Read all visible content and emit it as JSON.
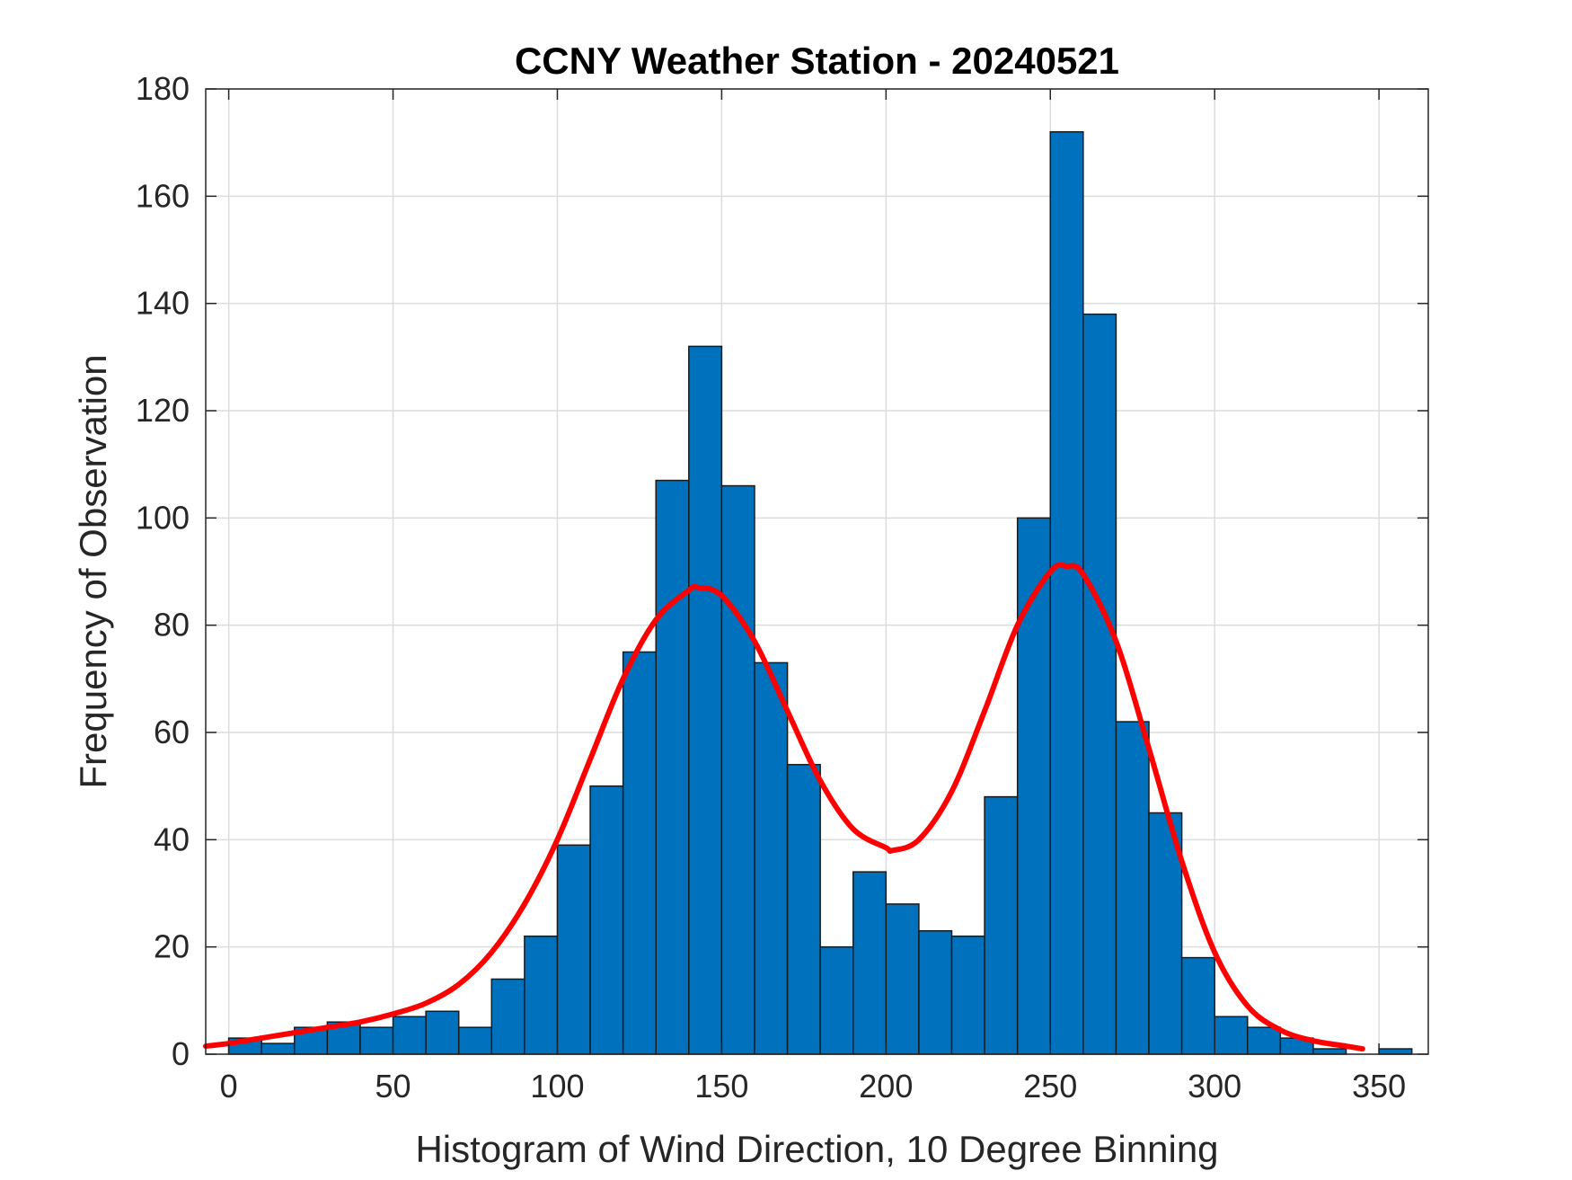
{
  "chart_data": {
    "type": "bar",
    "title": "CCNY Weather Station - 20240521",
    "xlabel": "Histogram of Wind Direction, 10 Degree Binning",
    "ylabel": "Frequency of Observation",
    "xlim": [
      -7,
      365
    ],
    "ylim": [
      0,
      180
    ],
    "xticks": [
      0,
      50,
      100,
      150,
      200,
      250,
      300,
      350
    ],
    "yticks": [
      0,
      20,
      40,
      60,
      80,
      100,
      120,
      140,
      160,
      180
    ],
    "grid": true,
    "bin_width": 10,
    "bin_edges_start": [
      0,
      10,
      20,
      30,
      40,
      50,
      60,
      70,
      80,
      90,
      100,
      110,
      120,
      130,
      140,
      150,
      160,
      170,
      180,
      190,
      200,
      210,
      220,
      230,
      240,
      250,
      260,
      270,
      280,
      290,
      300,
      310,
      320,
      330,
      340,
      350
    ],
    "values": [
      3,
      2,
      5,
      6,
      5,
      7,
      8,
      5,
      14,
      22,
      39,
      50,
      75,
      107,
      132,
      106,
      73,
      54,
      20,
      34,
      28,
      23,
      22,
      48,
      100,
      172,
      138,
      62,
      45,
      18,
      7,
      5,
      3,
      1,
      0,
      1
    ],
    "bar_color": "#0072BD",
    "fit_line": {
      "color": "#FF0000",
      "x": [
        -7,
        0,
        10,
        20,
        30,
        40,
        50,
        60,
        70,
        80,
        90,
        100,
        110,
        120,
        130,
        140,
        143,
        150,
        160,
        170,
        180,
        190,
        200,
        202,
        210,
        220,
        230,
        240,
        250,
        255,
        260,
        270,
        280,
        290,
        300,
        310,
        320,
        330,
        340,
        345
      ],
      "y": [
        1.5,
        2,
        3,
        4,
        5,
        6,
        7.5,
        9.5,
        13,
        19,
        28,
        40,
        55,
        70,
        81,
        86.5,
        87,
        85.5,
        77,
        64,
        51,
        42,
        38.5,
        38,
        40,
        49,
        64,
        80,
        90,
        91,
        89.5,
        77,
        57,
        36,
        19,
        9,
        4.5,
        2.5,
        1.5,
        1
      ]
    }
  }
}
